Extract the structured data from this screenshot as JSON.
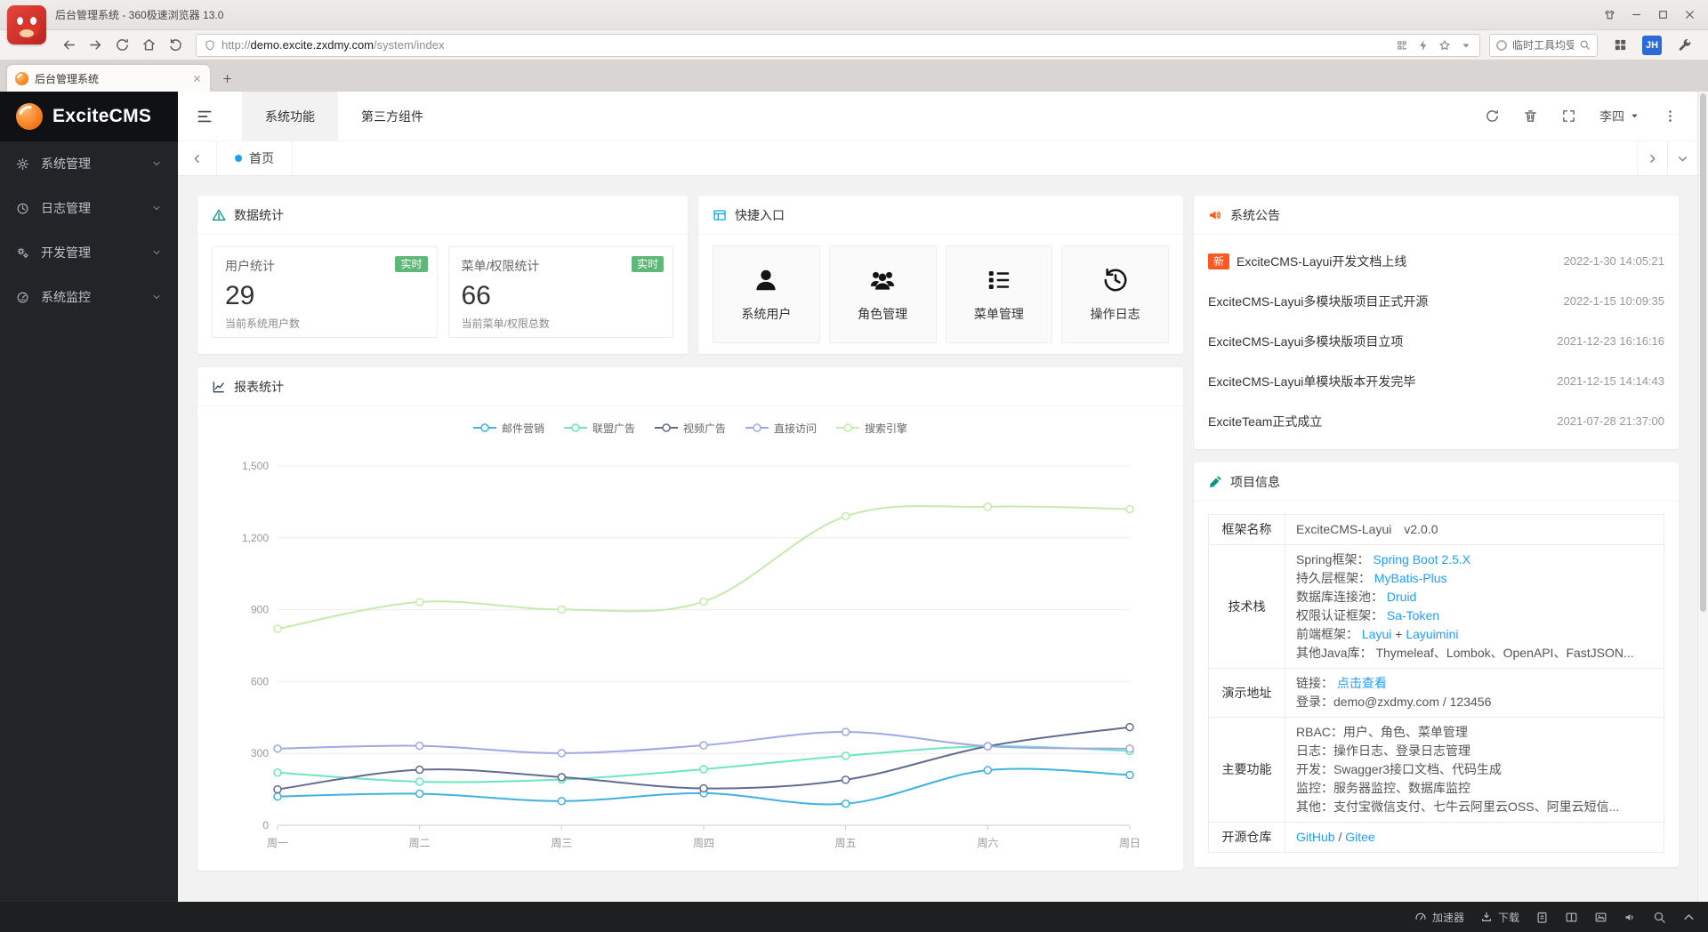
{
  "browser": {
    "title": "后台管理系统 - 360极速浏览器 13.0",
    "url": {
      "scheme": "http://",
      "host": "demo.excite.zxdmy.com",
      "path": "/system/index"
    },
    "tab_title": "后台管理系统",
    "search_text": "临时工具均受",
    "avatar": "JH",
    "bottombar": {
      "accelerator": "加速器",
      "download": "下载"
    }
  },
  "app": {
    "logo_text": "ExciteCMS",
    "sidebar": {
      "items": [
        {
          "key": "system",
          "icon": "gear-icon",
          "label": "系统管理"
        },
        {
          "key": "log",
          "icon": "clock-icon",
          "label": "日志管理"
        },
        {
          "key": "dev",
          "icon": "cogs-icon",
          "label": "开发管理"
        },
        {
          "key": "monitor",
          "icon": "monitor-icon",
          "label": "系统监控"
        }
      ]
    },
    "header": {
      "nav_tabs": [
        {
          "label": "系统功能",
          "active": true
        },
        {
          "label": "第三方组件",
          "active": false
        }
      ],
      "user": "李四"
    },
    "tabstrip": {
      "home": "首页"
    }
  },
  "cards": {
    "stats": {
      "title": "数据统计",
      "items": [
        {
          "title": "用户统计",
          "badge": "实时",
          "value": "29",
          "caption": "当前系统用户数"
        },
        {
          "title": "菜单/权限统计",
          "badge": "实时",
          "value": "66",
          "caption": "当前菜单/权限总数"
        }
      ]
    },
    "quick": {
      "title": "快捷入口",
      "items": [
        {
          "key": "users",
          "icon": "user-icon",
          "label": "系统用户"
        },
        {
          "key": "roles",
          "icon": "users-icon",
          "label": "角色管理"
        },
        {
          "key": "menus",
          "icon": "menu-icon",
          "label": "菜单管理"
        },
        {
          "key": "logs",
          "icon": "history-icon",
          "label": "操作日志"
        }
      ]
    },
    "report": {
      "title": "报表统计"
    },
    "announce": {
      "title": "系统公告",
      "items": [
        {
          "badge": "新",
          "title": "ExciteCMS-Layui开发文档上线",
          "time": "2022-1-30 14:05:21"
        },
        {
          "title": "ExciteCMS-Layui多模块版项目正式开源",
          "time": "2022-1-15 10:09:35"
        },
        {
          "title": "ExciteCMS-Layui多模块版项目立项",
          "time": "2021-12-23 16:16:16"
        },
        {
          "title": "ExciteCMS-Layui单模块版本开发完毕",
          "time": "2021-12-15 14:14:43"
        },
        {
          "title": "ExciteTeam正式成立",
          "time": "2021-07-28 21:37:00"
        }
      ]
    },
    "project": {
      "title": "项目信息",
      "rows": [
        {
          "label": "框架名称",
          "lines": [
            [
              {
                "t": "ExciteCMS-Layui　v2.0.0"
              }
            ]
          ]
        },
        {
          "label": "技术栈",
          "lines": [
            [
              {
                "t": "Spring框架： "
              },
              {
                "t": "Spring Boot 2.5.X",
                "link": true
              }
            ],
            [
              {
                "t": "持久层框架： "
              },
              {
                "t": "MyBatis-Plus",
                "link": true
              }
            ],
            [
              {
                "t": "数据库连接池： "
              },
              {
                "t": "Druid",
                "link": true
              }
            ],
            [
              {
                "t": "权限认证框架： "
              },
              {
                "t": "Sa-Token",
                "link": true
              }
            ],
            [
              {
                "t": "前端框架： "
              },
              {
                "t": "Layui",
                "link": true
              },
              {
                "t": " + "
              },
              {
                "t": "Layuimini",
                "link": true
              }
            ],
            [
              {
                "t": "其他Java库： Thymeleaf、Lombok、OpenAPI、FastJSON..."
              }
            ]
          ]
        },
        {
          "label": "演示地址",
          "lines": [
            [
              {
                "t": "链接： "
              },
              {
                "t": "点击查看",
                "link": true
              }
            ],
            [
              {
                "t": "登录：demo@zxdmy.com / 123456"
              }
            ]
          ]
        },
        {
          "label": "主要功能",
          "lines": [
            [
              {
                "t": "RBAC：用户、角色、菜单管理"
              }
            ],
            [
              {
                "t": "日志：操作日志、登录日志管理"
              }
            ],
            [
              {
                "t": "开发：Swagger3接口文档、代码生成"
              }
            ],
            [
              {
                "t": "监控：服务器监控、数据库监控"
              }
            ],
            [
              {
                "t": "其他：支付宝微信支付、七牛云阿里云OSS、阿里云短信..."
              }
            ]
          ]
        },
        {
          "label": "开源仓库",
          "lines": [
            [
              {
                "t": "GitHub",
                "link": true
              },
              {
                "t": " / "
              },
              {
                "t": "Gitee",
                "link": true
              }
            ]
          ]
        }
      ]
    }
  },
  "chart_data": {
    "type": "line",
    "title": "报表统计",
    "categories": [
      "周一",
      "周二",
      "周三",
      "周四",
      "周五",
      "周六",
      "周日"
    ],
    "series": [
      {
        "name": "邮件营销",
        "color": "#3fb1e3",
        "values": [
          120,
          132,
          101,
          134,
          90,
          230,
          210
        ]
      },
      {
        "name": "联盟广告",
        "color": "#6be6c1",
        "values": [
          220,
          182,
          191,
          234,
          290,
          330,
          310
        ]
      },
      {
        "name": "视频广告",
        "color": "#626c91",
        "values": [
          150,
          232,
          201,
          154,
          190,
          330,
          410
        ]
      },
      {
        "name": "直接访问",
        "color": "#a0a7e6",
        "values": [
          320,
          332,
          301,
          334,
          390,
          330,
          320
        ]
      },
      {
        "name": "搜索引擎",
        "color": "#c4ebad",
        "values": [
          820,
          932,
          901,
          934,
          1290,
          1330,
          1320
        ]
      }
    ],
    "xlabel": "",
    "ylabel": "",
    "ylim": [
      0,
      1500
    ],
    "ytick_step": 300,
    "grid": true,
    "smooth": true,
    "legend_position": "top"
  },
  "colors": {
    "accent_blue": "#1E9FFF",
    "green": "#5FB878",
    "red": "#FF5722",
    "teal": "#009688",
    "navy": "#2F4056"
  },
  "icons": {
    "gear-icon": "⚙",
    "clock-icon": "🕒",
    "cogs-icon": "⚙⚙",
    "monitor-icon": "◉",
    "user-icon": "👤",
    "users-icon": "👥",
    "menu-icon": "≣",
    "history-icon": "↺",
    "alert-triangle-icon": "⚠",
    "panel-icon": "▦",
    "chart-icon": "📈",
    "speaker-icon": "📢",
    "pen-icon": "✎",
    "search-icon": "🔍",
    "refresh-icon": "⟳",
    "trash-icon": "🗑",
    "fullscreen-icon": "⛶",
    "home-icon": "⌂",
    "star-icon": "☆",
    "lightning-icon": "⚡"
  }
}
